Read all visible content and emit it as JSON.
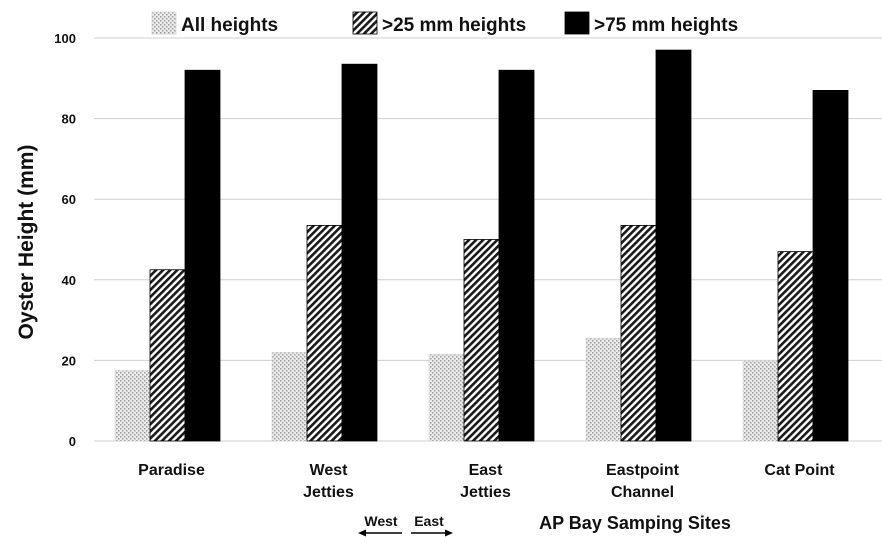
{
  "chart_data": {
    "type": "bar",
    "title": "",
    "ylabel": "Oyster Height (mm)",
    "xlabel": "AP Bay Samping Sites",
    "ylim": [
      0,
      100
    ],
    "yticks": [
      0,
      20,
      40,
      60,
      80,
      100
    ],
    "grid": true,
    "legend_position": "top",
    "categories": [
      [
        "Paradise"
      ],
      [
        "West",
        "Jetties"
      ],
      [
        "East",
        "Jetties"
      ],
      [
        "Eastpoint",
        "Channel"
      ],
      [
        "Cat Point"
      ]
    ],
    "series": [
      {
        "name": "All heights",
        "values": [
          17.5,
          22,
          21.5,
          25.5,
          20
        ],
        "fill": "dots",
        "color": "#bdbdbd"
      },
      {
        "name": ">25 mm heights",
        "values": [
          42.5,
          53.5,
          50,
          53.5,
          47
        ],
        "fill": "diagonal",
        "color": "#555555"
      },
      {
        "name": ">75 mm heights",
        "values": [
          92,
          93.5,
          92,
          97,
          87
        ],
        "fill": "solid",
        "color": "#000000"
      }
    ],
    "direction_labels": {
      "west": "West",
      "east": "East"
    }
  }
}
